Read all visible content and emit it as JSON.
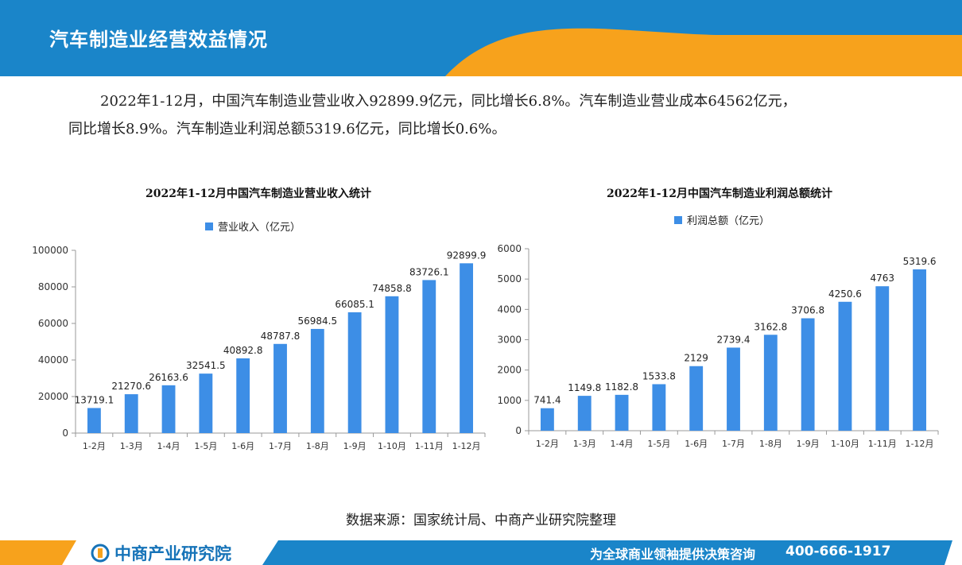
{
  "page": {
    "title": "汽车制造业经营效益情况",
    "summary_line1": "2022年1-12月，中国汽车制造业营业收入92899.9亿元，同比增长6.8%。汽车制造业营业成本64562亿元，",
    "summary_line2": "同比增长8.9%。汽车制造业利润总额5319.6亿元，同比增长0.6%。",
    "source": "数据来源：国家统计局、中商产业研究院整理"
  },
  "footer": {
    "brand": "中商产业研究院",
    "slogan": "为全球商业领袖提供决策咨询",
    "phone": "400-666-1917"
  },
  "colors": {
    "header_blue": "#1a85c9",
    "header_orange": "#f7a21c",
    "bar_blue": "#3d8ee6",
    "footer_blue": "#1a85c9"
  },
  "chart_data": [
    {
      "type": "bar",
      "title": "2022年1-12月中国汽车制造业营业收入统计",
      "categories": [
        "1-2月",
        "1-3月",
        "1-4月",
        "1-5月",
        "1-6月",
        "1-7月",
        "1-8月",
        "1-9月",
        "1-10月",
        "1-11月",
        "1-12月"
      ],
      "series": [
        {
          "name": "营业收入（亿元）",
          "values": [
            13719.1,
            21270.6,
            26163.6,
            32541.5,
            40892.8,
            48787.8,
            56984.5,
            66085.1,
            74858.8,
            83726.1,
            92899.9
          ],
          "labels": [
            "13719.1",
            "21270.6",
            "26163.6",
            "32541.5",
            "40892.8",
            "48787.8",
            "56984.5",
            "66085.1",
            "74858.8",
            "83726.1",
            "92899.9"
          ]
        }
      ],
      "ylim": [
        0,
        100000
      ],
      "yticks": [
        0,
        20000,
        40000,
        60000,
        80000,
        100000
      ],
      "legend": "top",
      "grid": false
    },
    {
      "type": "bar",
      "title": "2022年1-12月中国汽车制造业利润总额统计",
      "categories": [
        "1-2月",
        "1-3月",
        "1-4月",
        "1-5月",
        "1-6月",
        "1-7月",
        "1-8月",
        "1-9月",
        "1-10月",
        "1-11月",
        "1-12月"
      ],
      "series": [
        {
          "name": "利润总额（亿元）",
          "values": [
            741.4,
            1149.8,
            1182.8,
            1533.8,
            2129,
            2739.4,
            3162.8,
            3706.8,
            4250.6,
            4763,
            5319.6
          ],
          "labels": [
            "741.4",
            "1149.8",
            "1182.8",
            "1533.8",
            "2129",
            "2739.4",
            "3162.8",
            "3706.8",
            "4250.6",
            "4763",
            "5319.6"
          ]
        }
      ],
      "ylim": [
        0,
        6000
      ],
      "yticks": [
        0,
        1000,
        2000,
        3000,
        4000,
        5000,
        6000
      ],
      "legend": "top",
      "grid": false
    }
  ]
}
